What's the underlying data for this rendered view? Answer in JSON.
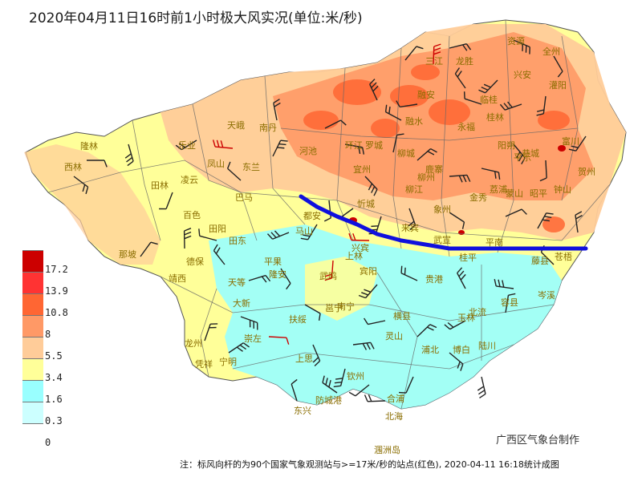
{
  "title": "2020年04月11日16时前1小时极大风实况(单位:米/秒)",
  "legend": {
    "colors": [
      "#cc0000",
      "#ff3333",
      "#ff6633",
      "#ff9966",
      "#ffcc99",
      "#ffff99",
      "#99ffff",
      "#ccffff",
      "#ffffff"
    ],
    "labels": [
      "17.2",
      "13.9",
      "10.8",
      "8",
      "5.5",
      "3.4",
      "1.6",
      "0.3",
      "0"
    ]
  },
  "credit": "广西区气象台制作",
  "note": "注：标风向杆的为90个国家气象观测站与>=17米/秒的站点(红色), 2020-04-11 16:18统计成图",
  "cities": [
    "三江",
    "龙胜",
    "资源",
    "全州",
    "兴安",
    "灌阳",
    "融安",
    "临桂",
    "桂林",
    "永福",
    "阳朔",
    "恭城",
    "富川",
    "钟山",
    "贺州",
    "平乐",
    "昭平",
    "荔浦",
    "蒙山",
    "金秀",
    "融水",
    "罗城",
    "柳城",
    "鹿寨",
    "柳州",
    "柳江",
    "象州",
    "武宣",
    "来宾",
    "忻城",
    "宜州",
    "环江",
    "河池",
    "南丹",
    "天峨",
    "东兰",
    "凤山",
    "巴马",
    "都安",
    "乐业",
    "隆林",
    "西林",
    "田林",
    "凌云",
    "百色",
    "田阳",
    "田东",
    "德保",
    "那坡",
    "靖西",
    "天等",
    "大新",
    "崇左",
    "龙州",
    "凭祥",
    "宁明",
    "上思",
    "东兴",
    "防城港",
    "钦州",
    "北海",
    "合浦",
    "涠洲岛",
    "浦北",
    "博白",
    "陆川",
    "北流",
    "玉林",
    "容县",
    "岑溪",
    "藤县",
    "苍梧",
    "平南",
    "桂平",
    "贵港",
    "横县",
    "灵山",
    "邕宁",
    "南宁",
    "扶绥",
    "隆安",
    "武鸣",
    "马山",
    "上林",
    "宾阳",
    "平果",
    "兴宾"
  ],
  "cold_front": [
    [
      375,
      245
    ],
    [
      395,
      258
    ],
    [
      420,
      270
    ],
    [
      445,
      280
    ],
    [
      470,
      292
    ],
    [
      500,
      300
    ],
    [
      530,
      305
    ],
    [
      560,
      310
    ],
    [
      600,
      310
    ],
    [
      640,
      310
    ],
    [
      690,
      310
    ],
    [
      730,
      310
    ]
  ]
}
